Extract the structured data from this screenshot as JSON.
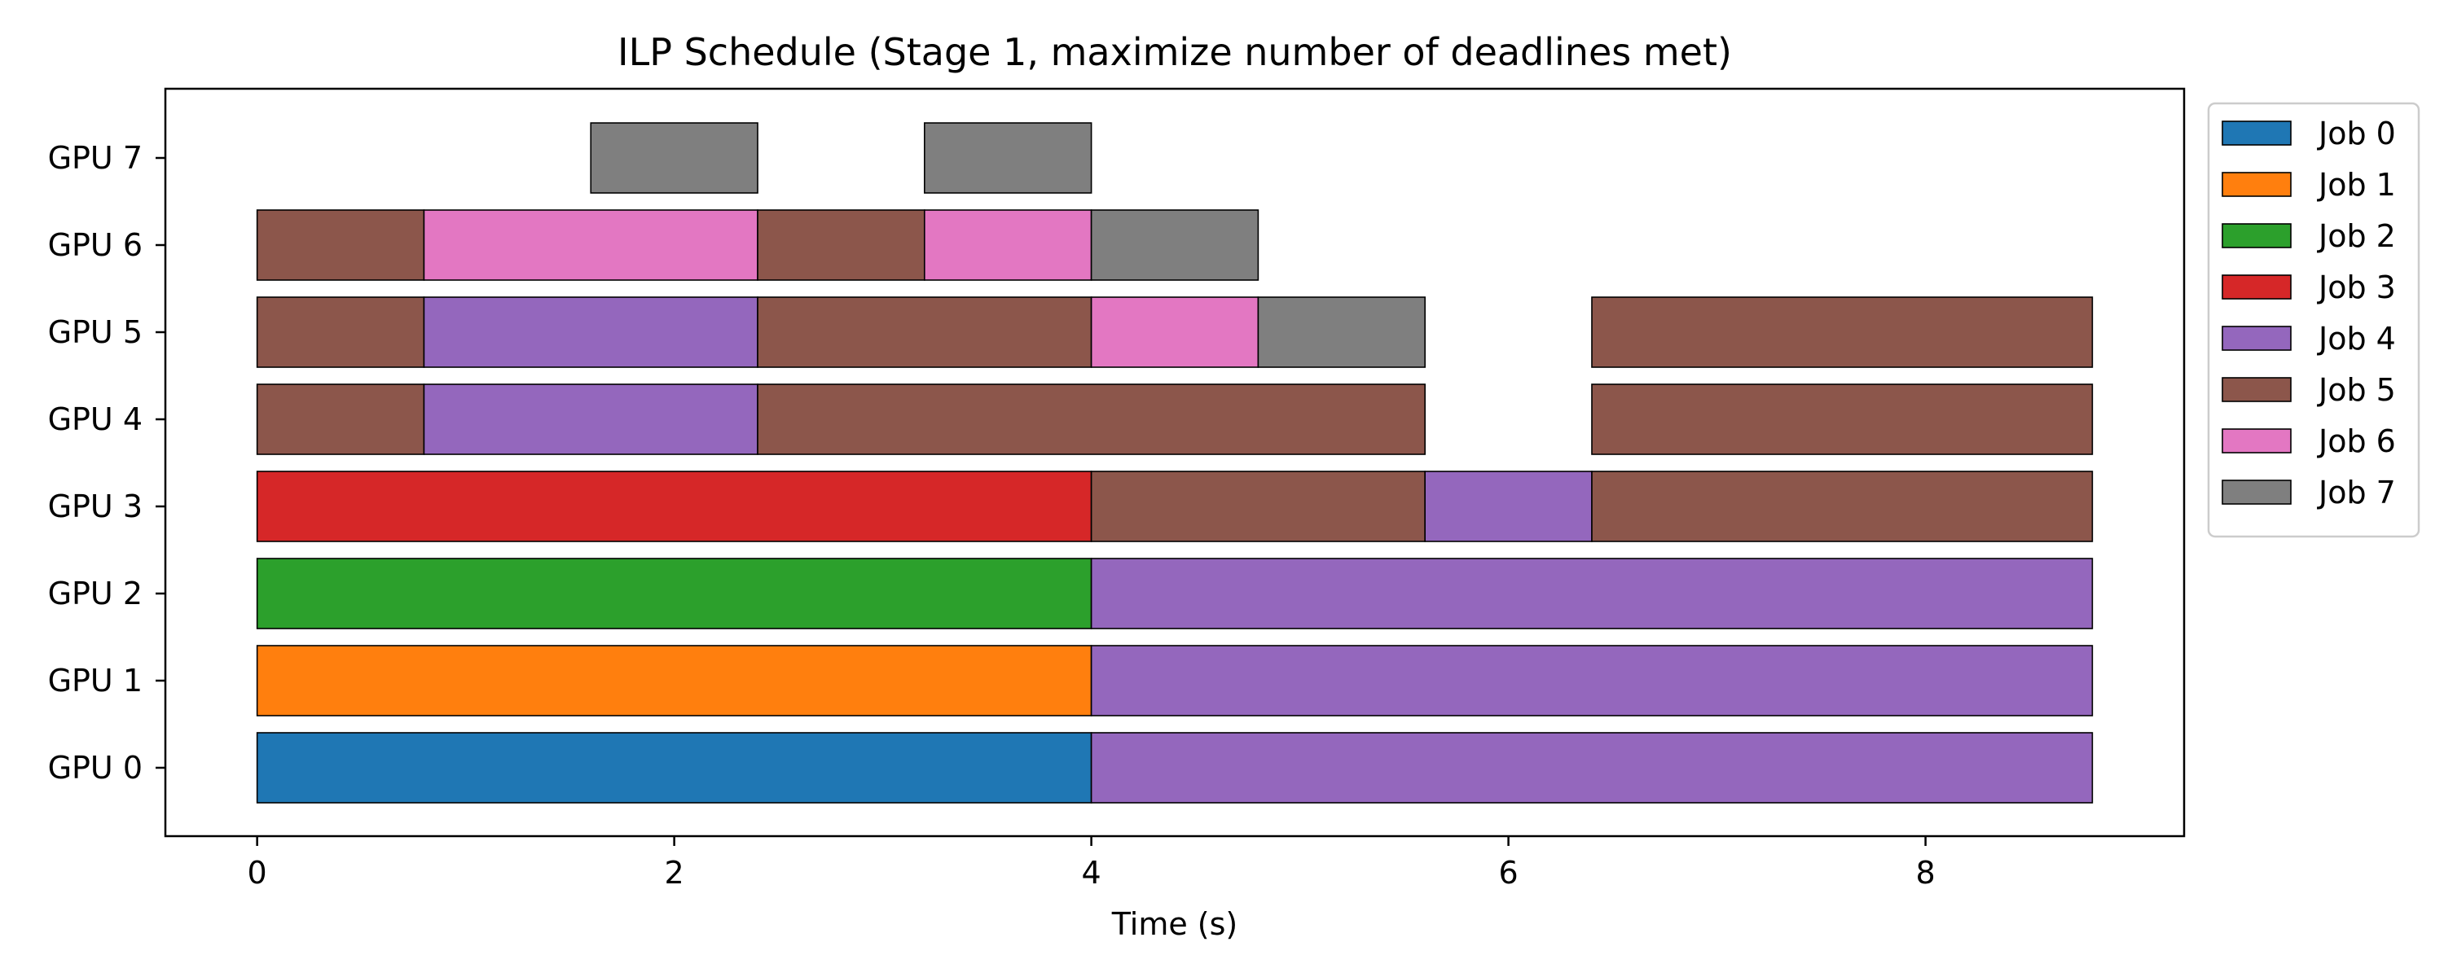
{
  "chart_data": {
    "type": "gantt",
    "title": "ILP Schedule (Stage 1, maximize number of deadlines met)",
    "xlabel": "Time (s)",
    "ylabel": "",
    "xlim": [
      -0.44,
      9.24
    ],
    "xticks": [
      0,
      2,
      4,
      6,
      8
    ],
    "gpus": [
      "GPU 0",
      "GPU 1",
      "GPU 2",
      "GPU 3",
      "GPU 4",
      "GPU 5",
      "GPU 6",
      "GPU 7"
    ],
    "legend": {
      "placement": "outside-right-top",
      "entries": [
        {
          "label": "Job 0",
          "color": "#1f77b4"
        },
        {
          "label": "Job 1",
          "color": "#ff7f0e"
        },
        {
          "label": "Job 2",
          "color": "#2ca02c"
        },
        {
          "label": "Job 3",
          "color": "#d62728"
        },
        {
          "label": "Job 4",
          "color": "#9467bd"
        },
        {
          "label": "Job 5",
          "color": "#8c564b"
        },
        {
          "label": "Job 6",
          "color": "#e377c2"
        },
        {
          "label": "Job 7",
          "color": "#7f7f7f"
        }
      ]
    },
    "grid": false,
    "bars": [
      {
        "gpu": 0,
        "job": 0,
        "start": 0.0,
        "end": 4.0
      },
      {
        "gpu": 0,
        "job": 4,
        "start": 4.0,
        "end": 8.8
      },
      {
        "gpu": 1,
        "job": 1,
        "start": 0.0,
        "end": 4.0
      },
      {
        "gpu": 1,
        "job": 4,
        "start": 4.0,
        "end": 8.8
      },
      {
        "gpu": 2,
        "job": 2,
        "start": 0.0,
        "end": 4.0
      },
      {
        "gpu": 2,
        "job": 4,
        "start": 4.0,
        "end": 8.8
      },
      {
        "gpu": 3,
        "job": 3,
        "start": 0.0,
        "end": 4.0
      },
      {
        "gpu": 3,
        "job": 5,
        "start": 4.0,
        "end": 5.6
      },
      {
        "gpu": 3,
        "job": 4,
        "start": 5.6,
        "end": 6.4
      },
      {
        "gpu": 3,
        "job": 5,
        "start": 6.4,
        "end": 8.8
      },
      {
        "gpu": 4,
        "job": 5,
        "start": 0.0,
        "end": 0.8
      },
      {
        "gpu": 4,
        "job": 4,
        "start": 0.8,
        "end": 2.4
      },
      {
        "gpu": 4,
        "job": 5,
        "start": 2.4,
        "end": 5.6
      },
      {
        "gpu": 4,
        "job": 5,
        "start": 6.4,
        "end": 8.8
      },
      {
        "gpu": 5,
        "job": 5,
        "start": 0.0,
        "end": 0.8
      },
      {
        "gpu": 5,
        "job": 4,
        "start": 0.8,
        "end": 2.4
      },
      {
        "gpu": 5,
        "job": 5,
        "start": 2.4,
        "end": 4.0
      },
      {
        "gpu": 5,
        "job": 6,
        "start": 4.0,
        "end": 4.8
      },
      {
        "gpu": 5,
        "job": 7,
        "start": 4.8,
        "end": 5.6
      },
      {
        "gpu": 5,
        "job": 5,
        "start": 6.4,
        "end": 8.8
      },
      {
        "gpu": 6,
        "job": 5,
        "start": 0.0,
        "end": 0.8
      },
      {
        "gpu": 6,
        "job": 6,
        "start": 0.8,
        "end": 2.4
      },
      {
        "gpu": 6,
        "job": 5,
        "start": 2.4,
        "end": 3.2
      },
      {
        "gpu": 6,
        "job": 6,
        "start": 3.2,
        "end": 4.0
      },
      {
        "gpu": 6,
        "job": 7,
        "start": 4.0,
        "end": 4.8
      },
      {
        "gpu": 7,
        "job": 7,
        "start": 1.6,
        "end": 2.4
      },
      {
        "gpu": 7,
        "job": 7,
        "start": 3.2,
        "end": 4.0
      }
    ]
  }
}
